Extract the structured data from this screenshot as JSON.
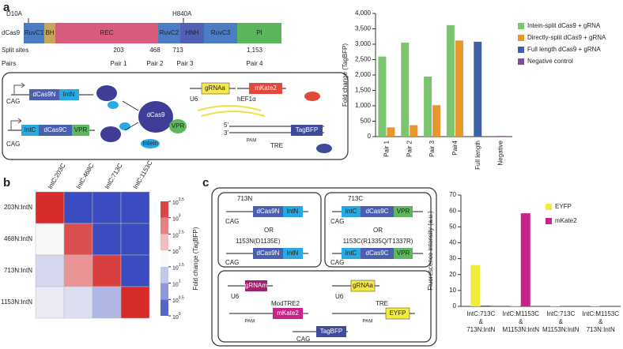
{
  "figure": {
    "panel_a": {
      "label": "a",
      "protein": "dCas9",
      "mutations": [
        "D10A",
        "H840A"
      ],
      "domains": [
        "RuvC1",
        "BH",
        "REC",
        "RuvC2",
        "HNH",
        "RuvC3",
        "PI"
      ],
      "split_sites_label": "Split sites",
      "split_sites": [
        "203",
        "468",
        "713",
        "1,153"
      ],
      "pairs_label": "Pairs",
      "pairs": [
        "Pair 1",
        "Pair 2",
        "Pair 3",
        "Pair 4"
      ],
      "diagram": [
        "CAG",
        "dCas9N",
        "IntN",
        "CAG",
        "IntC",
        "dCas9C",
        "VPR",
        "dCas9",
        "VPR",
        "Intein",
        "U6",
        "gRNAa",
        "hEF1α",
        "mKate2",
        "5'",
        "3'",
        "PAM",
        "TRE",
        "TagBFP"
      ]
    },
    "panel_b": {
      "label": "b"
    },
    "panel_c": {
      "label": "c",
      "diagram": [
        "713N",
        "dCas9N",
        "IntN",
        "CAG",
        "OR",
        "1153N(D1135E)",
        "dCas9N",
        "IntN",
        "CAG",
        "713C",
        "IntC",
        "dCas9C",
        "VPR",
        "CAG",
        "OR",
        "1153C(R1335Q/T1337R)",
        "IntC",
        "dCas9C",
        "VPR",
        "CAG",
        "U6",
        "gRNAm",
        "ModTRE2",
        "PAM",
        "mKate2",
        "U6",
        "gRNAa",
        "TRE",
        "PAM",
        "EYFP",
        "CAG",
        "TagBFP"
      ]
    }
  },
  "chart_data": [
    {
      "type": "bar",
      "ylabel": "Fold change (TagBFP)",
      "categories": [
        "Pair 1",
        "Pair 2",
        "Pair 3",
        "Pair4",
        "Full length",
        "Negative"
      ],
      "series": [
        {
          "name": "Intein-split dCas9 + gRNA",
          "color": "#7cc56e",
          "values": [
            2600,
            3050,
            1950,
            3620,
            null,
            null
          ]
        },
        {
          "name": "Directly-split dCas9 + gRNA",
          "color": "#e8962e",
          "values": [
            300,
            370,
            1020,
            3120,
            null,
            null
          ]
        },
        {
          "name": "Full length dCas9 + gRNA",
          "color": "#3f5fa8",
          "values": [
            null,
            null,
            null,
            null,
            3080,
            null
          ]
        },
        {
          "name": "Negative control",
          "color": "#7e4fa0",
          "values": [
            null,
            null,
            null,
            null,
            null,
            20
          ]
        }
      ],
      "ylim": [
        0,
        4000
      ],
      "yticks": [
        0,
        500,
        {
          "value": 1000,
          "label": "1,000"
        },
        {
          "value": 1500,
          "label": "1,500"
        },
        {
          "value": 2000,
          "label": "2,000"
        },
        {
          "value": 2500,
          "label": "2,500"
        },
        {
          "value": 3000,
          "label": "3,000"
        },
        {
          "value": 3500,
          "label": "3,500"
        },
        {
          "value": 4000,
          "label": "4,000"
        }
      ],
      "legend": "right"
    },
    {
      "type": "heatmap",
      "colorbar_label": "Fold change (TagBFP)",
      "log_scale": true,
      "x_categories": [
        "IntC:203C",
        "IntC:468C",
        "IntC:713C",
        "IntC:1153C"
      ],
      "y_categories": [
        "203N:IntN",
        "468N:IntN",
        "713N:IntN",
        "1153N:IntN"
      ],
      "values": [
        [
          3000,
          1,
          1,
          1
        ],
        [
          60,
          1500,
          1,
          1
        ],
        [
          25,
          400,
          2000,
          1
        ],
        [
          40,
          30,
          12,
          3000
        ]
      ],
      "clim": [
        1,
        3162
      ],
      "cticks": [
        {
          "value": 1,
          "label": "10^0"
        },
        {
          "value": 3.162,
          "label": "10^0.5"
        },
        {
          "value": 10,
          "label": "10^1"
        },
        {
          "value": 31.62,
          "label": "10^1.5"
        },
        {
          "value": 100,
          "label": "10^2"
        },
        {
          "value": 316.2,
          "label": "10^2.5"
        },
        {
          "value": 1000,
          "label": "10^3"
        },
        {
          "value": 3162,
          "label": "10^3.5"
        }
      ]
    },
    {
      "type": "bar",
      "ylabel": "Fluorescence intensity (a.u.)",
      "categories": [
        "IntC:713C\n&\n713N:IntN",
        "IntC:M1153C\n&\nM1153N:IntN",
        "IntC:713C\n&\nM1153N:IntN",
        "IntC:M1153C\n&\n713N:IntN"
      ],
      "series": [
        {
          "name": "EYFP",
          "color": "#f0ec3c",
          "values": [
            26,
            0.3,
            0.3,
            0.3
          ]
        },
        {
          "name": "mKate2",
          "color": "#c8238a",
          "values": [
            0.5,
            58.5,
            0.3,
            0.3
          ]
        }
      ],
      "ylim": [
        0,
        70
      ],
      "yticks": [
        0,
        10,
        20,
        30,
        40,
        50,
        60,
        70
      ],
      "legend": "right"
    }
  ]
}
